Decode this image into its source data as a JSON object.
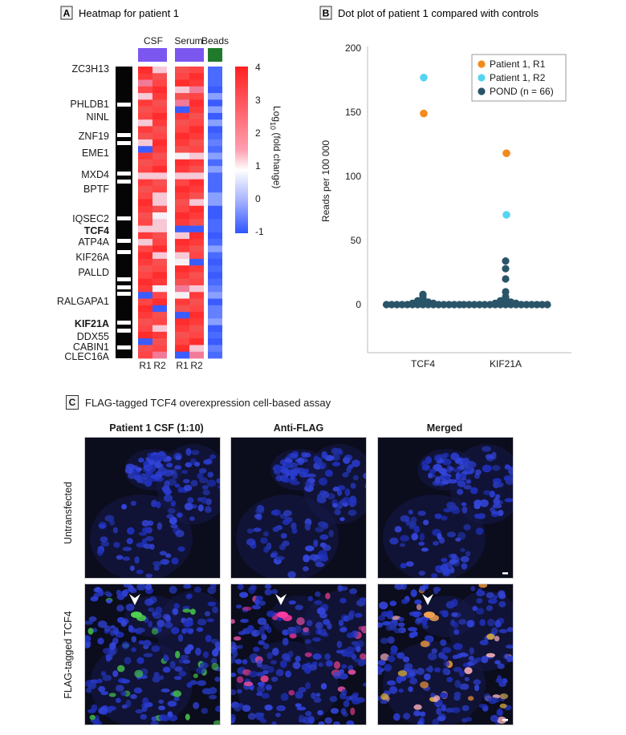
{
  "panelA": {
    "letter": "A",
    "title": "Heatmap for patient 1",
    "groups": [
      "CSF",
      "Serum",
      "Beads"
    ],
    "group_colors": [
      "#7b57f0",
      "#7b57f0",
      "#1f7a2a"
    ],
    "sub_labels": [
      "R1",
      "R2",
      "R1",
      "R2"
    ],
    "genes": [
      {
        "name": "ZC3H13",
        "color": "#1a1a1a"
      },
      {
        "name": "PHLDB1",
        "color": "#1a1a1a"
      },
      {
        "name": "NINL",
        "color": "#1a1a1a"
      },
      {
        "name": "ZNF19",
        "color": "#1a1a1a"
      },
      {
        "name": "EME1",
        "color": "#1a1a1a"
      },
      {
        "name": "MXD4",
        "color": "#1a1a1a"
      },
      {
        "name": "BPTF",
        "color": "#1a1a1a"
      },
      {
        "name": "IQSEC2",
        "color": "#1a1a1a"
      },
      {
        "name": "TCF4",
        "color": "#5fd62a"
      },
      {
        "name": "ATP4A",
        "color": "#1a1a1a"
      },
      {
        "name": "KIF26A",
        "color": "#1a1a1a"
      },
      {
        "name": "PALLD",
        "color": "#1a1a1a"
      },
      {
        "name": "RALGAPA1",
        "color": "#1a1a1a"
      },
      {
        "name": "KIF21A",
        "color": "#f08a1c"
      },
      {
        "name": "DDX55",
        "color": "#1a1a1a"
      },
      {
        "name": "CABIN1",
        "color": "#1a1a1a"
      },
      {
        "name": "CLEC16A",
        "color": "#1a1a1a"
      }
    ],
    "colorbar": {
      "ticks": [
        "4",
        "3",
        "2",
        "1",
        "0",
        "-1"
      ],
      "label_main": "Log",
      "label_sub": "10",
      "label_rest": " (fold change)"
    }
  },
  "panelB": {
    "letter": "B",
    "title": "Dot plot of patient 1 compared with controls"
  },
  "chart_data": {
    "type": "scatter",
    "categories": [
      "TCF4",
      "KIF21A"
    ],
    "ylabel": "Reads per 100 000",
    "ylim": [
      0,
      200
    ],
    "yticks": [
      "0",
      "50",
      "100",
      "150",
      "200"
    ],
    "grid": false,
    "legend_position": "top-right",
    "series": [
      {
        "name": "Patient 1, R1",
        "color": "#f28a1e",
        "values": [
          149,
          118
        ]
      },
      {
        "name": "Patient 1, R2",
        "color": "#55d4f2",
        "values": [
          177,
          70
        ]
      },
      {
        "name": "POND (n = 66)",
        "color": "#2a5468",
        "points": [
          {
            "category": "TCF4",
            "values": [
              8,
              7,
              5,
              4,
              3,
              3,
              2,
              2,
              2,
              1,
              1,
              1,
              1,
              1,
              0,
              0,
              0,
              0,
              0,
              0,
              0,
              0,
              0,
              0,
              0,
              0,
              0,
              0,
              0
            ]
          },
          {
            "category": "KIF21A",
            "values": [
              34,
              28,
              20,
              10,
              6,
              4,
              3,
              3,
              2,
              2,
              2,
              1,
              1,
              1,
              1,
              1,
              0,
              0,
              0,
              0,
              0,
              0,
              0,
              0,
              0,
              0,
              0,
              0,
              0,
              0,
              0,
              0,
              0
            ]
          }
        ]
      }
    ]
  },
  "panelC": {
    "letter": "C",
    "title": "FLAG-tagged TCF4 overexpression cell-based assay",
    "columns": [
      "Patient 1 CSF (1:10)",
      "Anti-FLAG",
      "Merged"
    ],
    "rows": [
      "Untransfected",
      "FLAG-tagged TCF4"
    ]
  }
}
